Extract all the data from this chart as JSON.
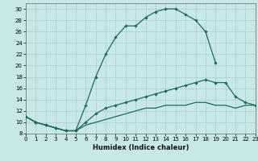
{
  "xlabel": "Humidex (Indice chaleur)",
  "background_color": "#c8e8e8",
  "grid_color": "#a8cccc",
  "line_color": "#1a6b5a",
  "xlim": [
    0,
    23
  ],
  "ylim": [
    8,
    31
  ],
  "xticks": [
    0,
    1,
    2,
    3,
    4,
    5,
    6,
    7,
    8,
    9,
    10,
    11,
    12,
    13,
    14,
    15,
    16,
    17,
    18,
    19,
    20,
    21,
    22,
    23
  ],
  "yticks": [
    8,
    10,
    12,
    14,
    16,
    18,
    20,
    22,
    24,
    26,
    28,
    30
  ],
  "curve1_x": [
    0,
    1,
    2,
    3,
    4,
    5,
    6,
    7,
    8,
    9,
    10,
    11,
    12,
    13,
    14,
    15,
    16,
    17,
    18,
    19
  ],
  "curve1_y": [
    11.0,
    10.0,
    9.5,
    9.0,
    8.5,
    8.5,
    13.0,
    18.0,
    22.0,
    25.0,
    27.0,
    27.0,
    28.5,
    29.5,
    30.0,
    30.0,
    29.0,
    28.0,
    26.0,
    20.5
  ],
  "curve2_x": [
    0,
    1,
    2,
    3,
    4,
    5,
    6,
    7,
    8,
    9,
    10,
    11,
    12,
    13,
    14,
    15,
    16,
    17,
    18,
    19,
    20,
    21,
    22,
    23
  ],
  "curve2_y": [
    11.0,
    10.0,
    9.5,
    9.0,
    8.5,
    8.5,
    10.0,
    11.5,
    12.5,
    13.0,
    13.5,
    14.0,
    14.5,
    15.0,
    15.5,
    16.0,
    16.5,
    17.0,
    17.5,
    17.0,
    17.0,
    14.5,
    13.5,
    13.0
  ],
  "curve3_x": [
    0,
    1,
    2,
    3,
    4,
    5,
    6,
    7,
    8,
    9,
    10,
    11,
    12,
    13,
    14,
    15,
    16,
    17,
    18,
    19,
    20,
    21,
    22,
    23
  ],
  "curve3_y": [
    11.0,
    10.0,
    9.5,
    9.0,
    8.5,
    8.5,
    9.5,
    10.0,
    10.5,
    11.0,
    11.5,
    12.0,
    12.5,
    12.5,
    13.0,
    13.0,
    13.0,
    13.5,
    13.5,
    13.0,
    13.0,
    12.5,
    13.0,
    13.0
  ],
  "xlabel_fontsize": 6,
  "tick_fontsize": 5
}
